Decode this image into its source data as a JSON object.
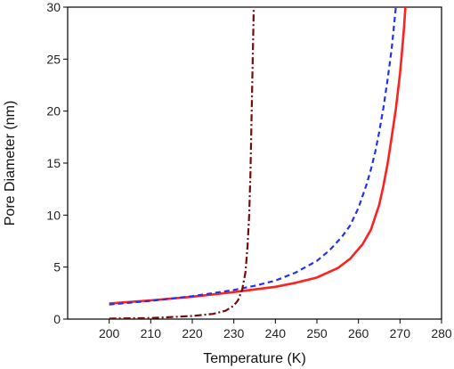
{
  "chart_data": {
    "type": "line",
    "title": "",
    "xlabel": "Temperature (K)",
    "ylabel": "Pore Diameter (nm)",
    "xlim": [
      190,
      280
    ],
    "ylim": [
      0,
      30
    ],
    "xticks": [
      200,
      210,
      220,
      230,
      240,
      250,
      260,
      270,
      280
    ],
    "yticks": [
      0,
      5,
      10,
      15,
      20,
      25,
      30
    ],
    "grid": false,
    "legend": "none",
    "series": [
      {
        "style": "solid",
        "color": "#ff2020",
        "x": [
          200,
          210,
          220,
          230,
          240,
          245,
          250,
          255,
          258,
          261,
          263,
          265,
          266,
          267,
          268,
          269,
          270,
          270.5,
          271,
          271.3
        ],
        "y": [
          1.5,
          1.8,
          2.15,
          2.6,
          3.1,
          3.5,
          4.0,
          4.9,
          5.8,
          7.2,
          8.6,
          11.0,
          12.8,
          14.9,
          17.5,
          20.2,
          23.6,
          25.8,
          28.2,
          30
        ]
      },
      {
        "style": "dashed",
        "color": "#2233ee",
        "x": [
          200,
          210,
          220,
          230,
          235,
          240,
          245,
          250,
          253,
          256,
          258,
          260,
          262,
          263,
          264,
          265,
          266,
          267,
          268,
          268.5,
          269
        ],
        "y": [
          1.4,
          1.75,
          2.2,
          2.8,
          3.2,
          3.7,
          4.5,
          5.6,
          6.6,
          7.9,
          9.0,
          10.7,
          13.0,
          14.4,
          16.0,
          18.0,
          20.3,
          23.0,
          26.0,
          28.0,
          30
        ]
      },
      {
        "style": "dashdot",
        "color": "#7a0a0a",
        "x": [
          200,
          210,
          220,
          225,
          228,
          230,
          231,
          232,
          232.8,
          233.3,
          233.7,
          234.0,
          234.2,
          234.4,
          234.6,
          234.8
        ],
        "y": [
          0.05,
          0.1,
          0.3,
          0.5,
          0.8,
          1.3,
          1.8,
          2.8,
          4.5,
          7.0,
          10.0,
          14.0,
          18.0,
          22.0,
          26.0,
          30
        ]
      }
    ]
  }
}
